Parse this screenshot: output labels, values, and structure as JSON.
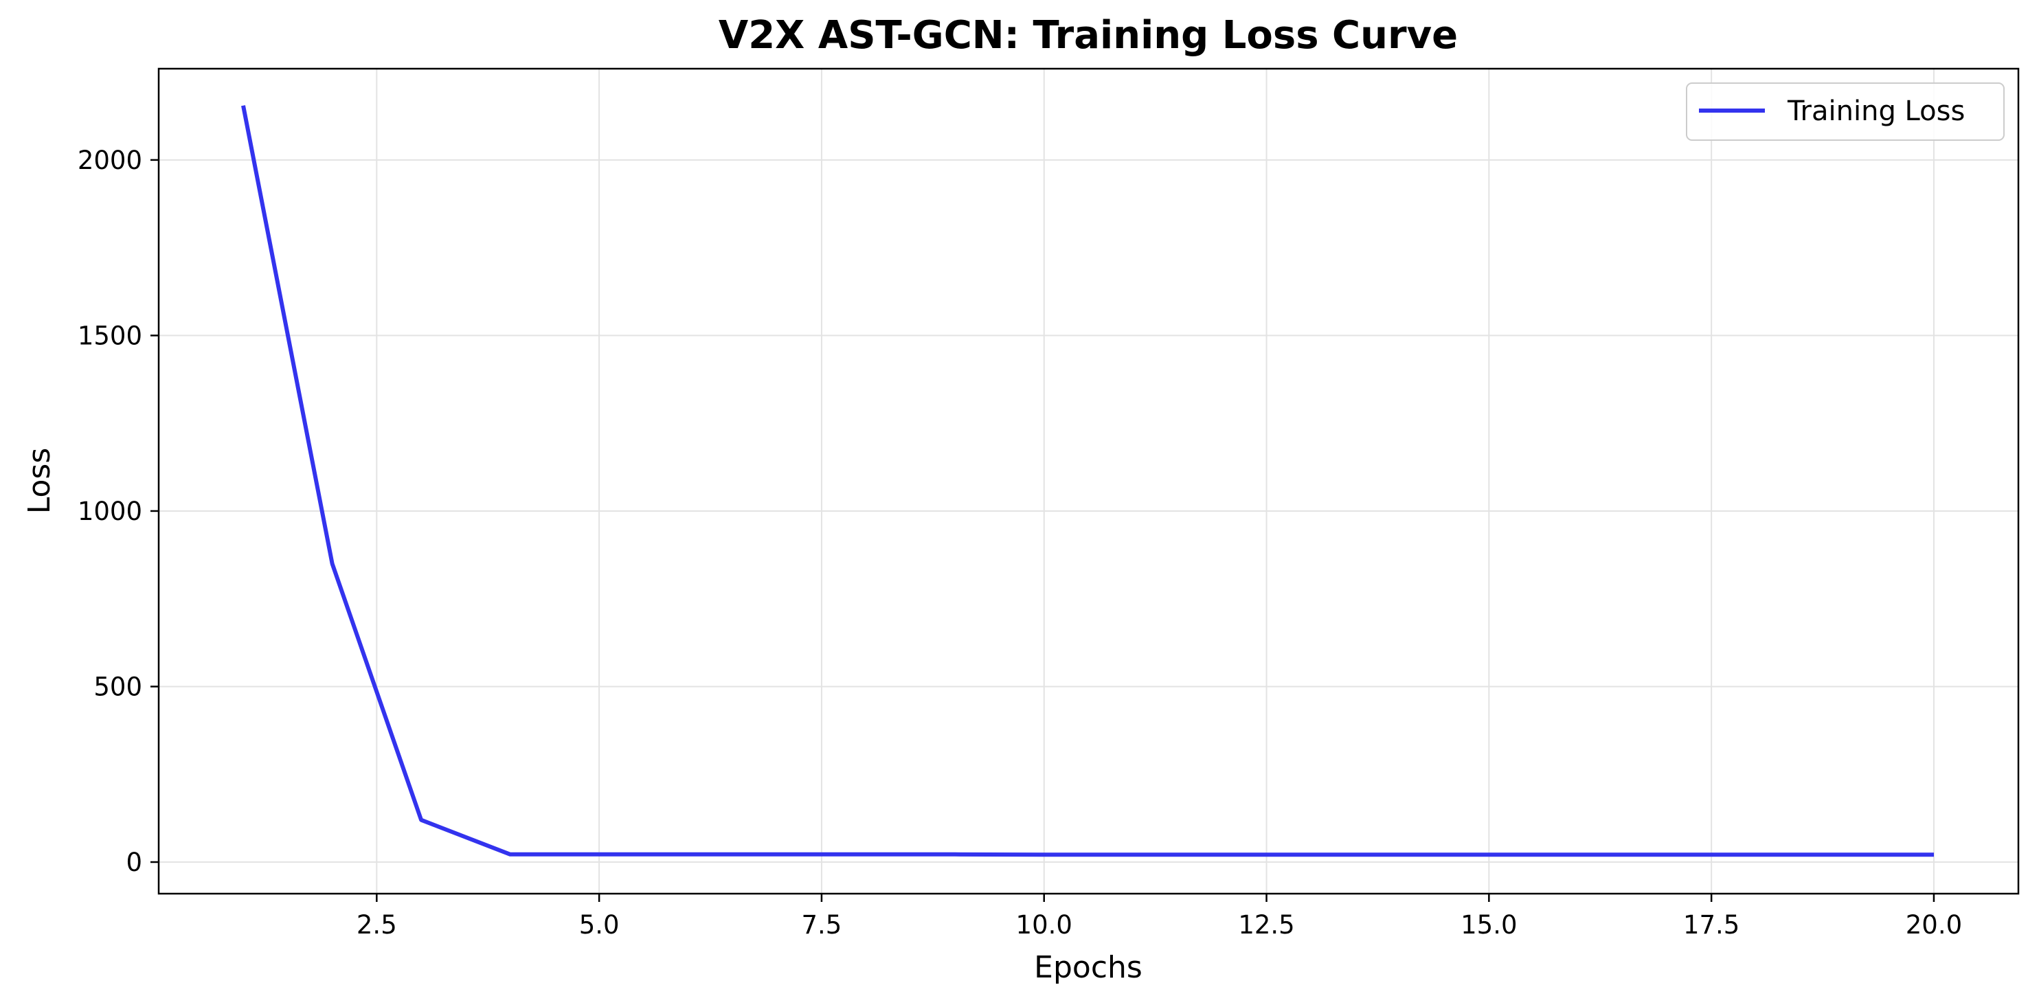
{
  "chart_data": {
    "type": "line",
    "title": "V2X AST-GCN: Training Loss Curve",
    "xlabel": "Epochs",
    "ylabel": "Loss",
    "xlim": [
      0.05,
      20.95
    ],
    "ylim": [
      -90,
      2260
    ],
    "xticks": [
      2.5,
      5.0,
      7.5,
      10.0,
      12.5,
      15.0,
      17.5,
      20.0
    ],
    "xtick_labels": [
      "2.5",
      "5.0",
      "7.5",
      "10.0",
      "12.5",
      "15.0",
      "17.5",
      "20.0"
    ],
    "yticks": [
      0,
      500,
      1000,
      1500,
      2000
    ],
    "ytick_labels": [
      "0",
      "500",
      "1000",
      "1500",
      "2000"
    ],
    "grid": true,
    "legend_position": "top-right",
    "series": [
      {
        "name": "Training Loss",
        "color": "#3333ee",
        "x": [
          1,
          2,
          3,
          4,
          5,
          6,
          7,
          8,
          9,
          10,
          11,
          12,
          13,
          14,
          15,
          16,
          17,
          18,
          19,
          20
        ],
        "y": [
          2155,
          850,
          120,
          22,
          22,
          22,
          22,
          22,
          22,
          21,
          21,
          21,
          21,
          21,
          21,
          21,
          21,
          21,
          21,
          21
        ]
      }
    ]
  }
}
